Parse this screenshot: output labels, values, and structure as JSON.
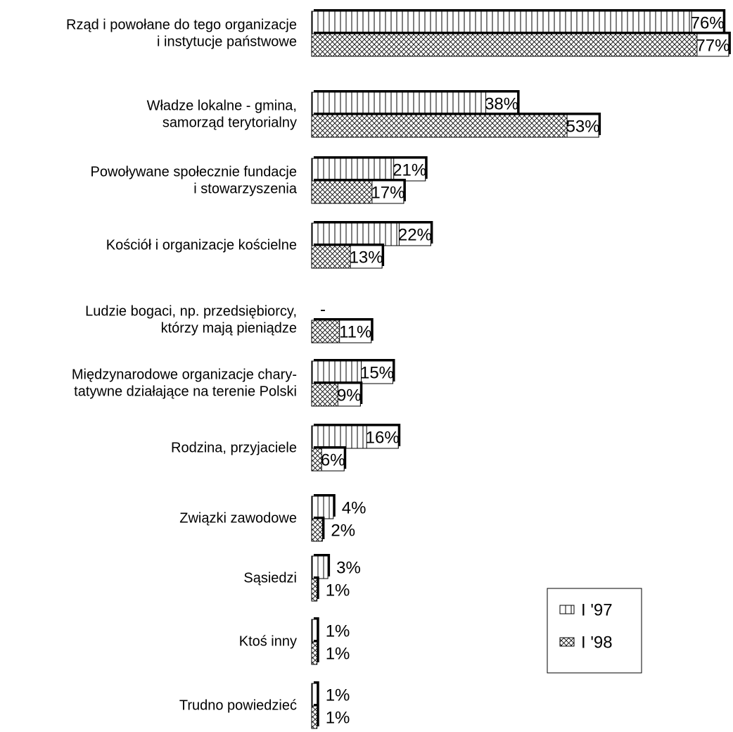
{
  "chart_data": {
    "type": "bar",
    "categories": [
      [
        "Rząd i powołane do tego organizacje",
        "i instytucje państwowe"
      ],
      [
        "Władze lokalne - gmina,",
        "samorząd terytorialny"
      ],
      [
        "Powoływane społecznie fundacje",
        "i stowarzyszenia"
      ],
      [
        "Kościół i organizacje kościelne"
      ],
      [
        "Ludzie bogaci, np. przedsiębiorcy,",
        "którzy mają pieniądze"
      ],
      [
        "Międzynarodowe organizacje chary-",
        "tatywne działające na terenie Polski"
      ],
      [
        "Rodzina, przyjaciele"
      ],
      [
        "Związki zawodowe"
      ],
      [
        "Sąsiedzi"
      ],
      [
        "Ktoś inny"
      ],
      [
        "Trudno powiedzieć"
      ]
    ],
    "series": [
      {
        "name": "I '97",
        "pattern": "vertical",
        "values": [
          76,
          38,
          21,
          22,
          null,
          15,
          16,
          4,
          3,
          1,
          1
        ],
        "value_labels": [
          "76%",
          "38%",
          "21%",
          "22%",
          "-",
          "15%",
          "16%",
          "4%",
          "3%",
          "1%",
          "1%"
        ]
      },
      {
        "name": "I '98",
        "pattern": "crosshatch",
        "values": [
          77,
          53,
          17,
          13,
          11,
          9,
          6,
          2,
          1,
          1,
          1
        ],
        "value_labels": [
          "77%",
          "53%",
          "17%",
          "13%",
          "11%",
          "9%",
          "6%",
          "2%",
          "1%",
          "1%",
          "1%"
        ]
      }
    ],
    "legend": "bottom-right"
  }
}
